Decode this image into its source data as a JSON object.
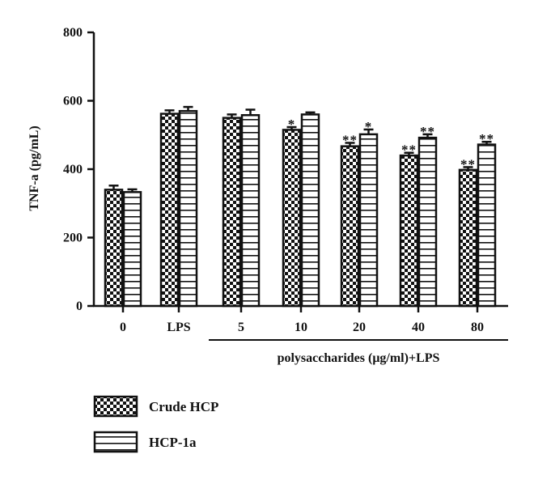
{
  "chart_data": {
    "type": "bar",
    "title": "",
    "xlabel": "",
    "ylabel": "TNF-a (pg/mL)",
    "ylim": [
      0,
      800
    ],
    "yticks": [
      0,
      200,
      400,
      600,
      800
    ],
    "categories": [
      "0",
      "LPS",
      "5",
      "10",
      "20",
      "40",
      "80"
    ],
    "group_label": "polysaccharides (μg/ml)+LPS",
    "grid": false,
    "legend_position": "bottom-left",
    "series": [
      {
        "name": "Crude HCP",
        "pattern": "checker",
        "values": [
          340,
          562,
          550,
          515,
          467,
          440,
          398
        ],
        "errors": [
          12,
          10,
          10,
          8,
          10,
          8,
          8
        ],
        "significance": [
          "",
          "",
          "",
          "*",
          "**",
          "**",
          "**"
        ]
      },
      {
        "name": "HCP-1a",
        "pattern": "horizontal-stripes",
        "values": [
          333,
          570,
          558,
          560,
          502,
          492,
          472
        ],
        "errors": [
          8,
          12,
          16,
          6,
          14,
          10,
          8
        ],
        "significance": [
          "",
          "",
          "",
          "",
          "*",
          "**",
          "**"
        ]
      }
    ]
  }
}
